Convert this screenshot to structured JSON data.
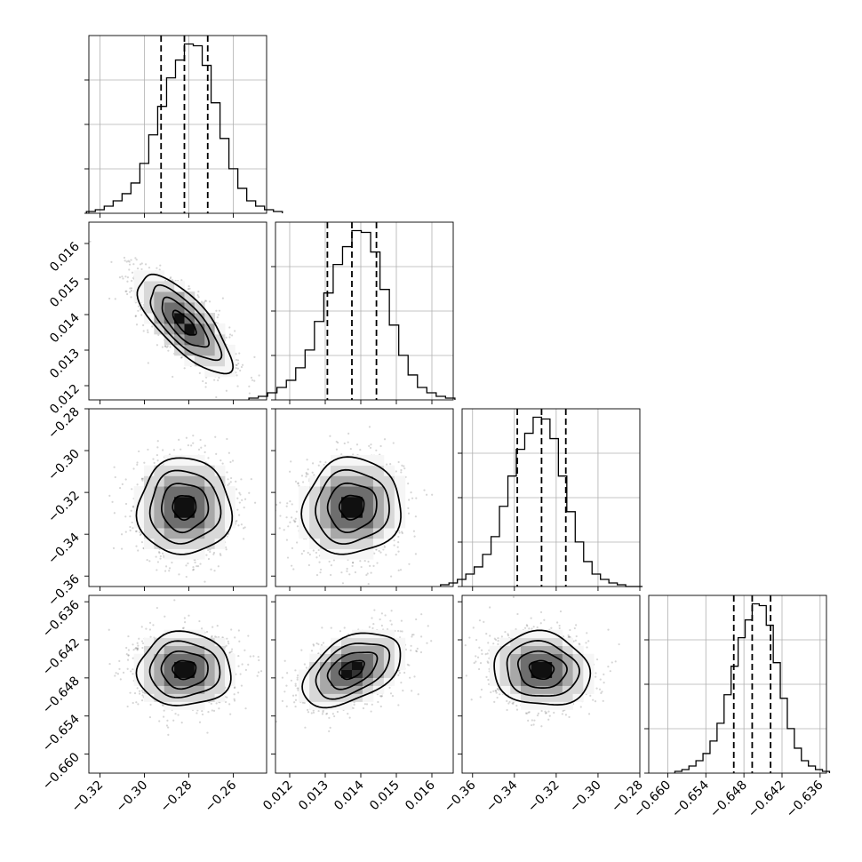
{
  "chart_data": {
    "type": "corner",
    "parameters": [
      {
        "range": [
          -0.325,
          -0.245
        ],
        "ticks": [
          -0.32,
          -0.3,
          -0.28,
          -0.26
        ],
        "tick_labels": [
          "−0.32",
          "−0.30",
          "−0.28",
          "−0.26"
        ],
        "mean": -0.282,
        "sd": 0.0105,
        "quantiles": [
          -0.2925,
          -0.282,
          -0.2715
        ],
        "hist_counts": [
          1,
          2,
          4,
          7,
          11,
          17,
          28,
          44,
          60,
          76,
          86,
          95,
          94,
          83,
          62,
          42,
          25,
          14,
          7,
          4,
          2,
          1
        ]
      },
      {
        "range": [
          0.0116,
          0.0166
        ],
        "ticks": [
          0.012,
          0.013,
          0.014,
          0.015,
          0.016
        ],
        "tick_labels": [
          "0.012",
          "0.013",
          "0.014",
          "0.015",
          "0.016"
        ],
        "mean": 0.01375,
        "sd": 0.00069,
        "quantiles": [
          0.01306,
          0.01375,
          0.01444
        ],
        "hist_counts": [
          1,
          2,
          4,
          7,
          11,
          18,
          28,
          44,
          60,
          76,
          86,
          95,
          94,
          83,
          62,
          42,
          25,
          14,
          7,
          4,
          2,
          1
        ]
      },
      {
        "range": [
          -0.365,
          -0.28
        ],
        "ticks": [
          -0.36,
          -0.34,
          -0.32,
          -0.3,
          -0.28
        ],
        "tick_labels": [
          "−0.36",
          "−0.34",
          "−0.32",
          "−0.30",
          "−0.28"
        ],
        "mean": -0.327,
        "sd": 0.0115,
        "quantiles": [
          -0.3386,
          -0.327,
          -0.3154
        ],
        "hist_counts": [
          1,
          2,
          4,
          7,
          11,
          18,
          28,
          45,
          62,
          77,
          86,
          95,
          94,
          83,
          62,
          42,
          25,
          14,
          7,
          4,
          2,
          1,
          0,
          0
        ]
      },
      {
        "range": [
          -0.663,
          -0.635
        ],
        "ticks": [
          -0.66,
          -0.654,
          -0.648,
          -0.642,
          -0.636
        ],
        "tick_labels": [
          "−0.660",
          "−0.654",
          "−0.648",
          "−0.642",
          "−0.636"
        ],
        "mean": -0.6467,
        "sd": 0.0029,
        "quantiles": [
          -0.6496,
          -0.6467,
          -0.6438
        ],
        "hist_counts": [
          1,
          2,
          4,
          7,
          11,
          18,
          28,
          44,
          60,
          76,
          86,
          95,
          94,
          83,
          62,
          42,
          25,
          14,
          7,
          4,
          2,
          1
        ]
      }
    ],
    "correlations": {
      "1_0": -0.75,
      "2_0": 0.0,
      "2_1": 0.05,
      "3_0": 0.0,
      "3_1": 0.45,
      "3_2": -0.1
    },
    "contour_levels_sigma": [
      0.5,
      1.0,
      1.5,
      2.0
    ],
    "quantile_levels": [
      0.16,
      0.5,
      0.84
    ],
    "grid": true,
    "title": "",
    "axis_labels": []
  }
}
